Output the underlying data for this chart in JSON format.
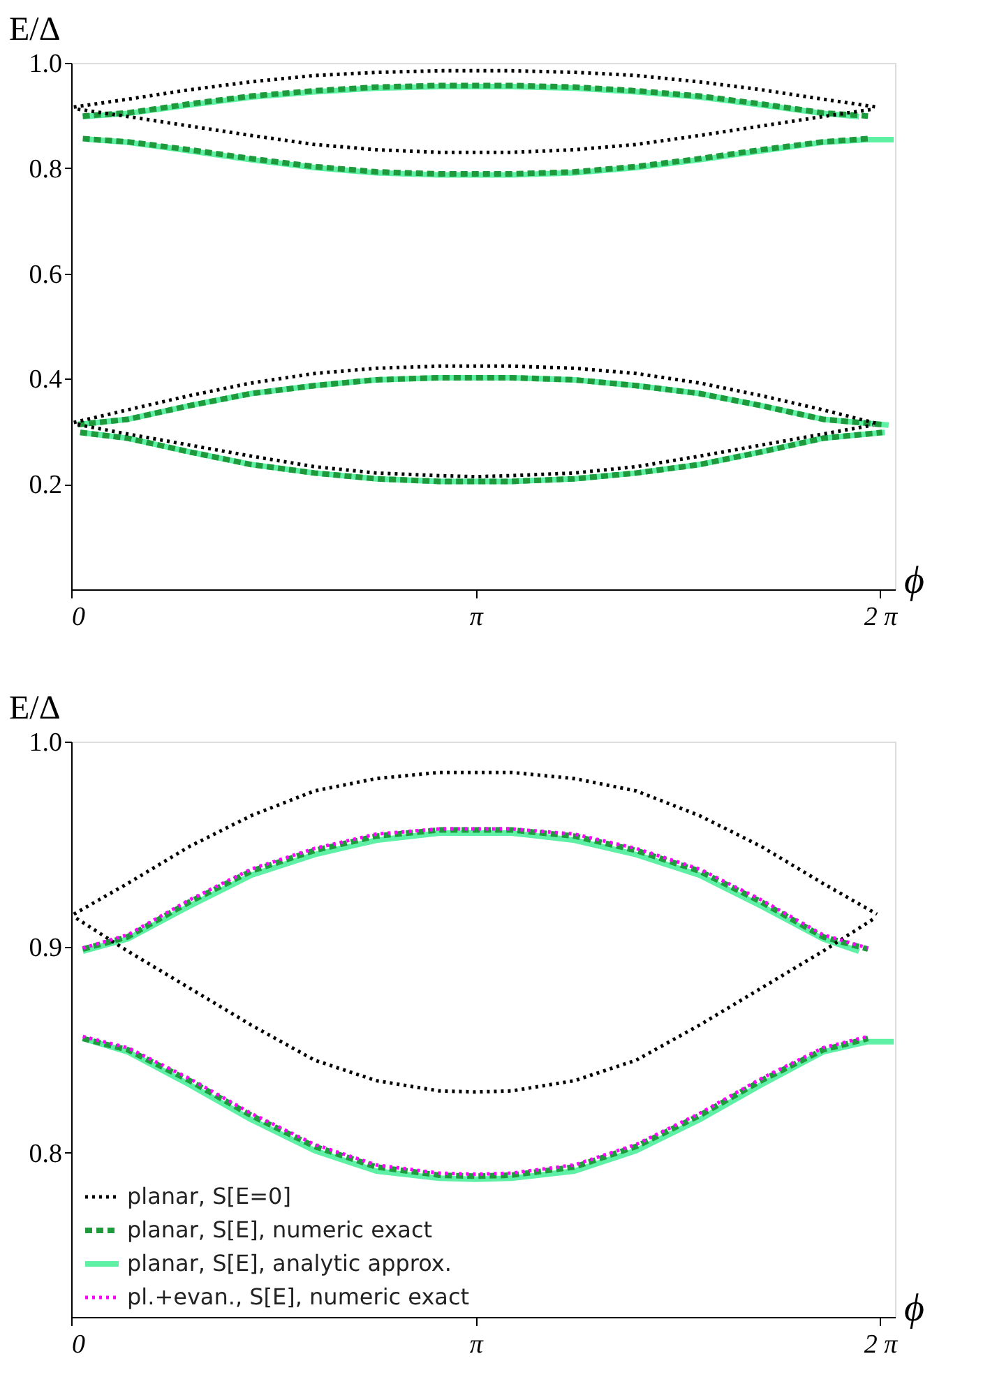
{
  "chart_data": [
    {
      "type": "line",
      "xlabel": "ϕ",
      "ylabel": "E/Δ",
      "xlim": [
        0,
        6.4
      ],
      "ylim": [
        0,
        1.0
      ],
      "xticks": [
        {
          "value": 0,
          "label": "0"
        },
        {
          "value": 3.14159,
          "label": "π"
        },
        {
          "value": 6.28319,
          "label": "2 π"
        }
      ],
      "yticks": [
        0.2,
        0.4,
        0.6,
        0.8,
        {
          "value": 1.0,
          "label": "1.0"
        }
      ],
      "grid": false,
      "legend": false,
      "marker": "none",
      "series": [
        {
          "color": "#000000",
          "line_style": "dotted",
          "x": [
            0.02,
            0.44,
            0.92,
            1.4,
            1.89,
            2.37,
            2.86,
            3.14,
            3.42,
            3.91,
            4.39,
            4.88,
            5.36,
            5.84,
            6.26
          ],
          "values": [
            0.916,
            0.931,
            0.949,
            0.964,
            0.976,
            0.982,
            0.985,
            0.985,
            0.985,
            0.982,
            0.976,
            0.964,
            0.949,
            0.931,
            0.916
          ]
        },
        {
          "color": "#000000",
          "line_style": "dotted",
          "x": [
            0.05,
            0.44,
            0.92,
            1.4,
            1.89,
            2.37,
            2.86,
            3.14,
            3.42,
            3.91,
            4.39,
            4.88,
            5.36,
            5.84,
            6.23
          ],
          "values": [
            0.912,
            0.898,
            0.88,
            0.862,
            0.845,
            0.835,
            0.83,
            0.83,
            0.83,
            0.835,
            0.845,
            0.862,
            0.88,
            0.898,
            0.912
          ]
        },
        {
          "color": "#000000",
          "line_style": "dotted",
          "x": [
            0.02,
            0.44,
            0.92,
            1.4,
            1.89,
            2.37,
            2.86,
            3.14,
            3.42,
            3.91,
            4.39,
            4.88,
            5.36,
            5.84,
            6.26
          ],
          "values": [
            0.317,
            0.341,
            0.368,
            0.392,
            0.41,
            0.42,
            0.424,
            0.424,
            0.424,
            0.42,
            0.41,
            0.392,
            0.368,
            0.341,
            0.315
          ]
        },
        {
          "color": "#000000",
          "line_style": "dotted",
          "x": [
            0.05,
            0.44,
            0.92,
            1.4,
            1.89,
            2.37,
            2.86,
            3.14,
            3.42,
            3.91,
            4.39,
            4.88,
            5.36,
            5.84,
            6.23
          ],
          "values": [
            0.313,
            0.295,
            0.274,
            0.253,
            0.233,
            0.221,
            0.216,
            0.214,
            0.216,
            0.221,
            0.233,
            0.253,
            0.274,
            0.295,
            0.312
          ]
        },
        {
          "color": "#5ef0a4",
          "line_style": "solid",
          "x": [
            0.09,
            0.44,
            0.92,
            1.4,
            1.89,
            2.37,
            2.86,
            3.14,
            3.42,
            3.91,
            4.39,
            4.88,
            5.36,
            5.84,
            6.12
          ],
          "values": [
            0.898,
            0.904,
            0.92,
            0.935,
            0.945,
            0.952,
            0.955,
            0.955,
            0.955,
            0.952,
            0.945,
            0.935,
            0.92,
            0.904,
            0.898
          ]
        },
        {
          "color": "#5ef0a4",
          "line_style": "solid",
          "x": [
            0.12,
            0.44,
            0.92,
            1.4,
            1.89,
            2.37,
            2.86,
            3.14,
            3.42,
            3.91,
            4.39,
            4.88,
            5.36,
            5.84,
            6.19,
            6.39
          ],
          "values": [
            0.855,
            0.849,
            0.833,
            0.816,
            0.801,
            0.791,
            0.787,
            0.787,
            0.787,
            0.791,
            0.801,
            0.816,
            0.833,
            0.849,
            0.854,
            0.854
          ]
        },
        {
          "color": "#5ef0a4",
          "line_style": "solid",
          "x": [
            0.05,
            0.44,
            0.92,
            1.4,
            1.89,
            2.37,
            2.86,
            3.14,
            3.42,
            3.91,
            4.39,
            4.88,
            5.36,
            5.84,
            6.35
          ],
          "values": [
            0.313,
            0.323,
            0.349,
            0.372,
            0.387,
            0.398,
            0.402,
            0.402,
            0.402,
            0.398,
            0.387,
            0.372,
            0.349,
            0.323,
            0.312
          ]
        },
        {
          "color": "#5ef0a4",
          "line_style": "solid",
          "x": [
            0.07,
            0.44,
            0.92,
            1.4,
            1.89,
            2.37,
            2.86,
            3.14,
            3.42,
            3.91,
            4.39,
            4.88,
            5.36,
            5.84,
            6.32
          ],
          "values": [
            0.298,
            0.287,
            0.261,
            0.237,
            0.221,
            0.21,
            0.205,
            0.205,
            0.205,
            0.21,
            0.221,
            0.237,
            0.261,
            0.287,
            0.298
          ]
        },
        {
          "color": "#1e9a3c",
          "line_style": "dashed",
          "x": [
            0.09,
            0.44,
            0.92,
            1.4,
            1.89,
            2.37,
            2.86,
            3.14,
            3.42,
            3.91,
            4.39,
            4.88,
            5.36,
            5.84,
            6.19
          ],
          "values": [
            0.899,
            0.905,
            0.922,
            0.937,
            0.947,
            0.954,
            0.957,
            0.957,
            0.957,
            0.954,
            0.947,
            0.937,
            0.922,
            0.905,
            0.899
          ]
        },
        {
          "color": "#1e9a3c",
          "line_style": "dashed",
          "x": [
            0.09,
            0.44,
            0.92,
            1.4,
            1.89,
            2.37,
            2.86,
            3.14,
            3.42,
            3.91,
            4.39,
            4.88,
            5.36,
            5.84,
            6.19
          ],
          "values": [
            0.856,
            0.85,
            0.835,
            0.818,
            0.803,
            0.793,
            0.789,
            0.789,
            0.789,
            0.793,
            0.803,
            0.818,
            0.835,
            0.85,
            0.856
          ]
        },
        {
          "color": "#1e9a3c",
          "line_style": "dashed",
          "x": [
            0.05,
            0.44,
            0.92,
            1.4,
            1.89,
            2.37,
            2.86,
            3.14,
            3.42,
            3.91,
            4.39,
            4.88,
            5.36,
            5.84,
            6.3
          ],
          "values": [
            0.313,
            0.323,
            0.349,
            0.372,
            0.387,
            0.398,
            0.402,
            0.402,
            0.402,
            0.398,
            0.387,
            0.372,
            0.349,
            0.323,
            0.313
          ]
        },
        {
          "color": "#1e9a3c",
          "line_style": "dashed",
          "x": [
            0.07,
            0.44,
            0.92,
            1.4,
            1.89,
            2.37,
            2.86,
            3.14,
            3.42,
            3.91,
            4.39,
            4.88,
            5.36,
            5.84,
            6.3
          ],
          "values": [
            0.298,
            0.287,
            0.261,
            0.237,
            0.221,
            0.21,
            0.205,
            0.205,
            0.205,
            0.21,
            0.221,
            0.237,
            0.261,
            0.287,
            0.298
          ]
        }
      ]
    },
    {
      "type": "line",
      "xlabel": "ϕ",
      "ylabel": "E/Δ",
      "xlim": [
        0,
        6.4
      ],
      "ylim": [
        0.72,
        1.0
      ],
      "xticks": [
        {
          "value": 0,
          "label": "0"
        },
        {
          "value": 3.14159,
          "label": "π"
        },
        {
          "value": 6.28319,
          "label": "2 π"
        }
      ],
      "yticks": [
        0.8,
        0.9,
        {
          "value": 1.0,
          "label": "1.0"
        }
      ],
      "grid": false,
      "legend": "bottom left",
      "marker": "none",
      "series": [
        {
          "name": "planar, S[E=0]",
          "color": "#000000",
          "line_style": "dotted",
          "x": [
            0.02,
            0.44,
            0.92,
            1.4,
            1.89,
            2.37,
            2.86,
            3.14,
            3.42,
            3.91,
            4.39,
            4.88,
            5.36,
            5.84,
            6.26
          ],
          "values": [
            0.916,
            0.931,
            0.949,
            0.964,
            0.976,
            0.982,
            0.985,
            0.985,
            0.985,
            0.982,
            0.976,
            0.964,
            0.949,
            0.931,
            0.916
          ]
        },
        {
          "color": "#000000",
          "line_style": "dotted",
          "x": [
            0.04,
            0.44,
            0.92,
            1.4,
            1.89,
            2.37,
            2.86,
            3.14,
            3.42,
            3.91,
            4.39,
            4.88,
            5.36,
            5.84,
            6.24
          ],
          "values": [
            0.914,
            0.898,
            0.88,
            0.862,
            0.845,
            0.835,
            0.83,
            0.8295,
            0.83,
            0.835,
            0.845,
            0.862,
            0.88,
            0.898,
            0.914
          ]
        },
        {
          "name": "planar, S[E], numeric exact",
          "color": "#1e9a3c",
          "line_style": "dashed",
          "x": [
            0.09,
            0.44,
            0.92,
            1.4,
            1.89,
            2.37,
            2.86,
            3.14,
            3.42,
            3.91,
            4.39,
            4.88,
            5.36,
            5.84,
            6.19
          ],
          "values": [
            0.899,
            0.905,
            0.922,
            0.937,
            0.947,
            0.954,
            0.957,
            0.957,
            0.957,
            0.954,
            0.947,
            0.937,
            0.922,
            0.905,
            0.899
          ]
        },
        {
          "color": "#1e9a3c",
          "line_style": "dashed",
          "x": [
            0.09,
            0.44,
            0.92,
            1.4,
            1.89,
            2.37,
            2.86,
            3.14,
            3.42,
            3.91,
            4.39,
            4.88,
            5.36,
            5.84,
            6.19
          ],
          "values": [
            0.8555,
            0.85,
            0.835,
            0.818,
            0.803,
            0.793,
            0.789,
            0.7885,
            0.789,
            0.793,
            0.803,
            0.818,
            0.835,
            0.85,
            0.8555
          ]
        },
        {
          "name": "planar, S[E], analytic approx.",
          "color": "#5ef0a4",
          "line_style": "solid",
          "x": [
            0.09,
            0.44,
            0.92,
            1.4,
            1.89,
            2.37,
            2.86,
            3.14,
            3.42,
            3.91,
            4.39,
            4.88,
            5.36,
            5.84,
            6.12
          ],
          "values": [
            0.898,
            0.904,
            0.92,
            0.935,
            0.945,
            0.952,
            0.9555,
            0.9555,
            0.9555,
            0.952,
            0.945,
            0.935,
            0.92,
            0.904,
            0.898
          ]
        },
        {
          "color": "#5ef0a4",
          "line_style": "solid",
          "x": [
            0.12,
            0.44,
            0.92,
            1.4,
            1.89,
            2.37,
            2.86,
            3.14,
            3.42,
            3.91,
            4.39,
            4.88,
            5.36,
            5.84,
            6.19,
            6.39
          ],
          "values": [
            0.855,
            0.849,
            0.833,
            0.816,
            0.801,
            0.791,
            0.7875,
            0.787,
            0.7875,
            0.791,
            0.801,
            0.816,
            0.833,
            0.849,
            0.854,
            0.854
          ]
        },
        {
          "name": "pl.+evan., S[E], numeric exact",
          "color": "#ff00ff",
          "line_style": "dotted",
          "x": [
            0.09,
            0.44,
            0.92,
            1.4,
            1.89,
            2.37,
            2.86,
            3.14,
            3.42,
            3.91,
            4.39,
            4.88,
            5.36,
            5.84,
            6.19
          ],
          "values": [
            0.8995,
            0.906,
            0.923,
            0.938,
            0.948,
            0.955,
            0.9575,
            0.9575,
            0.9575,
            0.955,
            0.948,
            0.938,
            0.923,
            0.906,
            0.8995
          ]
        },
        {
          "color": "#ff00ff",
          "line_style": "dotted",
          "x": [
            0.09,
            0.44,
            0.92,
            1.4,
            1.89,
            2.37,
            2.86,
            3.14,
            3.42,
            3.91,
            4.39,
            4.88,
            5.36,
            5.84,
            6.19
          ],
          "values": [
            0.8565,
            0.851,
            0.836,
            0.819,
            0.804,
            0.794,
            0.79,
            0.7895,
            0.79,
            0.794,
            0.804,
            0.819,
            0.836,
            0.851,
            0.8565
          ]
        }
      ]
    }
  ]
}
